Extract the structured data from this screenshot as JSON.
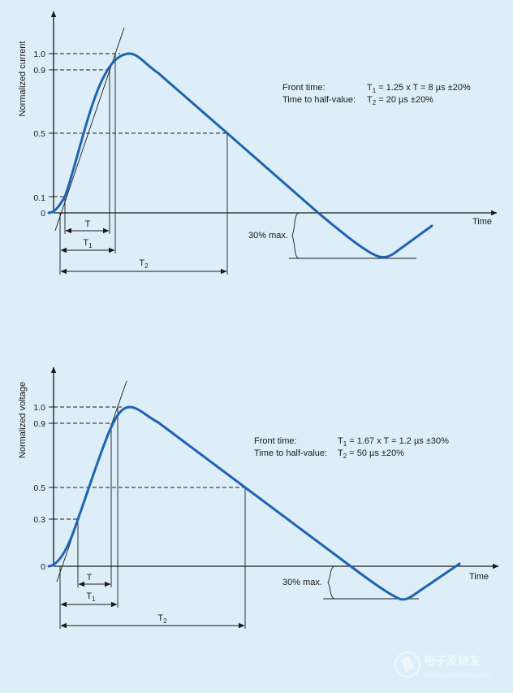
{
  "colors": {
    "background": "#ddeef8",
    "curve": "#1e64ae",
    "ink": "#1a1a1a"
  },
  "charts": [
    {
      "id": "current",
      "y_label": "Normalized current",
      "x_label": "Time",
      "ticks": [
        {
          "label": "1.0",
          "value": 1.0
        },
        {
          "label": "0.9",
          "value": 0.9
        },
        {
          "label": "0.5",
          "value": 0.5
        },
        {
          "label": "0.1",
          "value": 0.1
        },
        {
          "label": "0",
          "value": 0
        }
      ],
      "front_label": "Front time:",
      "front_value": "T1 = 1.25 x T = 8 µs ±20%",
      "half_label": "Time to half-value:",
      "half_value": "T2 = 20 µs ±20%",
      "undershoot_label": "30% max.",
      "spans": [
        "T",
        "T1",
        "T2"
      ]
    },
    {
      "id": "voltage",
      "y_label": "Normalized voltage",
      "x_label": "Time",
      "ticks": [
        {
          "label": "1.0",
          "value": 1.0
        },
        {
          "label": "0.9",
          "value": 0.9
        },
        {
          "label": "0.5",
          "value": 0.5
        },
        {
          "label": "0.3",
          "value": 0.3
        },
        {
          "label": "0",
          "value": 0
        }
      ],
      "front_label": "Front time:",
      "front_value": "T1 = 1.67 x T = 1.2 µs ±30%",
      "half_label": "Time to half-value:",
      "half_value": "T2 = 50 µs ±20%",
      "undershoot_label": "30% max.",
      "spans": [
        "T",
        "T1",
        "T2"
      ]
    }
  ],
  "watermark": {
    "brand": "电子发烧友",
    "url": "www.elecfans.com"
  }
}
